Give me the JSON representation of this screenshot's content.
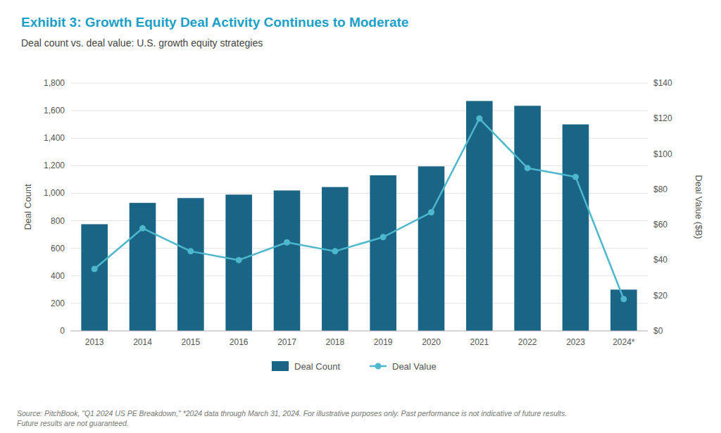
{
  "chart_data": {
    "type": "bar",
    "title": "Exhibit 3: Growth Equity Deal Activity Continues to Moderate",
    "subtitle": "Deal count vs. deal value: U.S. growth equity strategies",
    "annotations": [
      "Source: PitchBook, \"Q1 2024 US PE Breakdown,\" *2024 data through March 31, 2024. For illustrative purposes only. Past performance is not indicative of future results.\nFuture results are not guaranteed."
    ],
    "categories": [
      "2013",
      "2014",
      "2015",
      "2016",
      "2017",
      "2018",
      "2019",
      "2020",
      "2021",
      "2022",
      "2023",
      "2024*"
    ],
    "series": [
      {
        "name": "Deal Count",
        "type": "bar",
        "color": "#1a6585",
        "values": [
          775,
          930,
          965,
          990,
          1020,
          1045,
          1130,
          1195,
          1670,
          1635,
          1500,
          300
        ]
      },
      {
        "name": "Deal Value",
        "type": "line",
        "color": "#4db8cc",
        "marker": "circle",
        "axis": "y2",
        "values": [
          35,
          58,
          45,
          40,
          50,
          45,
          53,
          67,
          120,
          92,
          87,
          18
        ]
      }
    ],
    "ylabel": "Deal Count",
    "y2label": "Deal Value ($B)",
    "ylim": [
      0,
      1800
    ],
    "yticks": [
      0,
      200,
      400,
      600,
      800,
      {
        "value": 1000,
        "label": "1,000"
      },
      {
        "value": 1200,
        "label": "1,200"
      },
      {
        "value": 1400,
        "label": "1,400"
      },
      {
        "value": 1600,
        "label": "1,600"
      },
      {
        "value": 1800,
        "label": "1,800"
      }
    ],
    "y2lim": [
      0,
      140
    ],
    "y2ticks": [
      {
        "value": 0,
        "label": "$0"
      },
      {
        "value": 20,
        "label": "$20"
      },
      {
        "value": 40,
        "label": "$40"
      },
      {
        "value": 60,
        "label": "$60"
      },
      {
        "value": 80,
        "label": "$80"
      },
      {
        "value": 100,
        "label": "$100"
      },
      {
        "value": 120,
        "label": "$120"
      },
      {
        "value": 140,
        "label": "$140"
      }
    ],
    "grid": true,
    "legend": "bottom"
  }
}
